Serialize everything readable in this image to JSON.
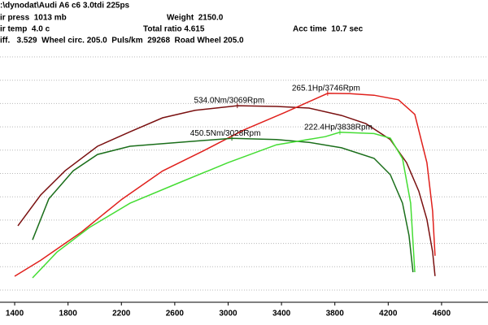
{
  "header": {
    "file": ":\\dynodat\\Audi A6 c6 3.0tdi 225ps",
    "air_press": "ir press  1013 mb",
    "weight": "Weight  2150.0",
    "air_temp": "ir temp  4.0 c",
    "total_ratio": "Total ratio 4.615",
    "acc_time": "Acc time  10.7 sec",
    "diff_line": "iff.   3.529  Wheel circ. 205.0  Puls/km  29268  Road Wheel 205.0"
  },
  "chart_data": {
    "type": "line",
    "xlim": [
      1290,
      4948
    ],
    "xticks": [
      1400,
      1800,
      2200,
      2600,
      3000,
      3400,
      3800,
      4200,
      4600
    ],
    "ylim": [
      30,
      680
    ],
    "y2lim": [
      36,
      314
    ],
    "grid": true,
    "series": [
      {
        "color": "#7a1010",
        "axis": "y",
        "x": [
          1424,
          1595,
          1778,
          2021,
          2265,
          2509,
          2753,
          3069,
          3362,
          3606,
          3850,
          4033,
          4216,
          4338,
          4429,
          4490,
          4533,
          4551
        ],
        "values": [
          226,
          305,
          367,
          430,
          467,
          503,
          522,
          534,
          532,
          528,
          509,
          488,
          447,
          388,
          315,
          242,
          159,
          97
        ]
      },
      {
        "color": "#e0201c",
        "axis": "y2",
        "x": [
          1400,
          1595,
          1900,
          2204,
          2509,
          2814,
          3118,
          3423,
          3746,
          3911,
          4094,
          4277,
          4399,
          4490,
          4533,
          4551
        ],
        "values": [
          64.5,
          82,
          113,
          149,
          180,
          202,
          225,
          244,
          265.1,
          264.7,
          263,
          258,
          242,
          189,
          136,
          87
        ]
      },
      {
        "color": "#1a6e1a",
        "axis": "y",
        "x": [
          1534,
          1656,
          1839,
          2021,
          2265,
          2631,
          3028,
          3362,
          3606,
          3850,
          4094,
          4216,
          4307,
          4356,
          4386
        ],
        "values": [
          190,
          295,
          367,
          409,
          430,
          440,
          450.5,
          447,
          440,
          426,
          399,
          357,
          284,
          201,
          107
        ]
      },
      {
        "color": "#44dd33",
        "axis": "y2",
        "x": [
          1534,
          1717,
          1960,
          2265,
          2631,
          2997,
          3362,
          3728,
          3838,
          4094,
          4216,
          4307,
          4368,
          4399
        ],
        "values": [
          62.7,
          91,
          118,
          144.6,
          167,
          189,
          208.7,
          217.6,
          222.4,
          221,
          216,
          193.5,
          144.6,
          69
        ]
      }
    ],
    "annotations": [
      "534.0Nm/3069Rpm",
      "265.1Hp/3746Rpm",
      "450.5Nm/3028Rpm",
      "222.4Hp/3838Rpm"
    ]
  }
}
